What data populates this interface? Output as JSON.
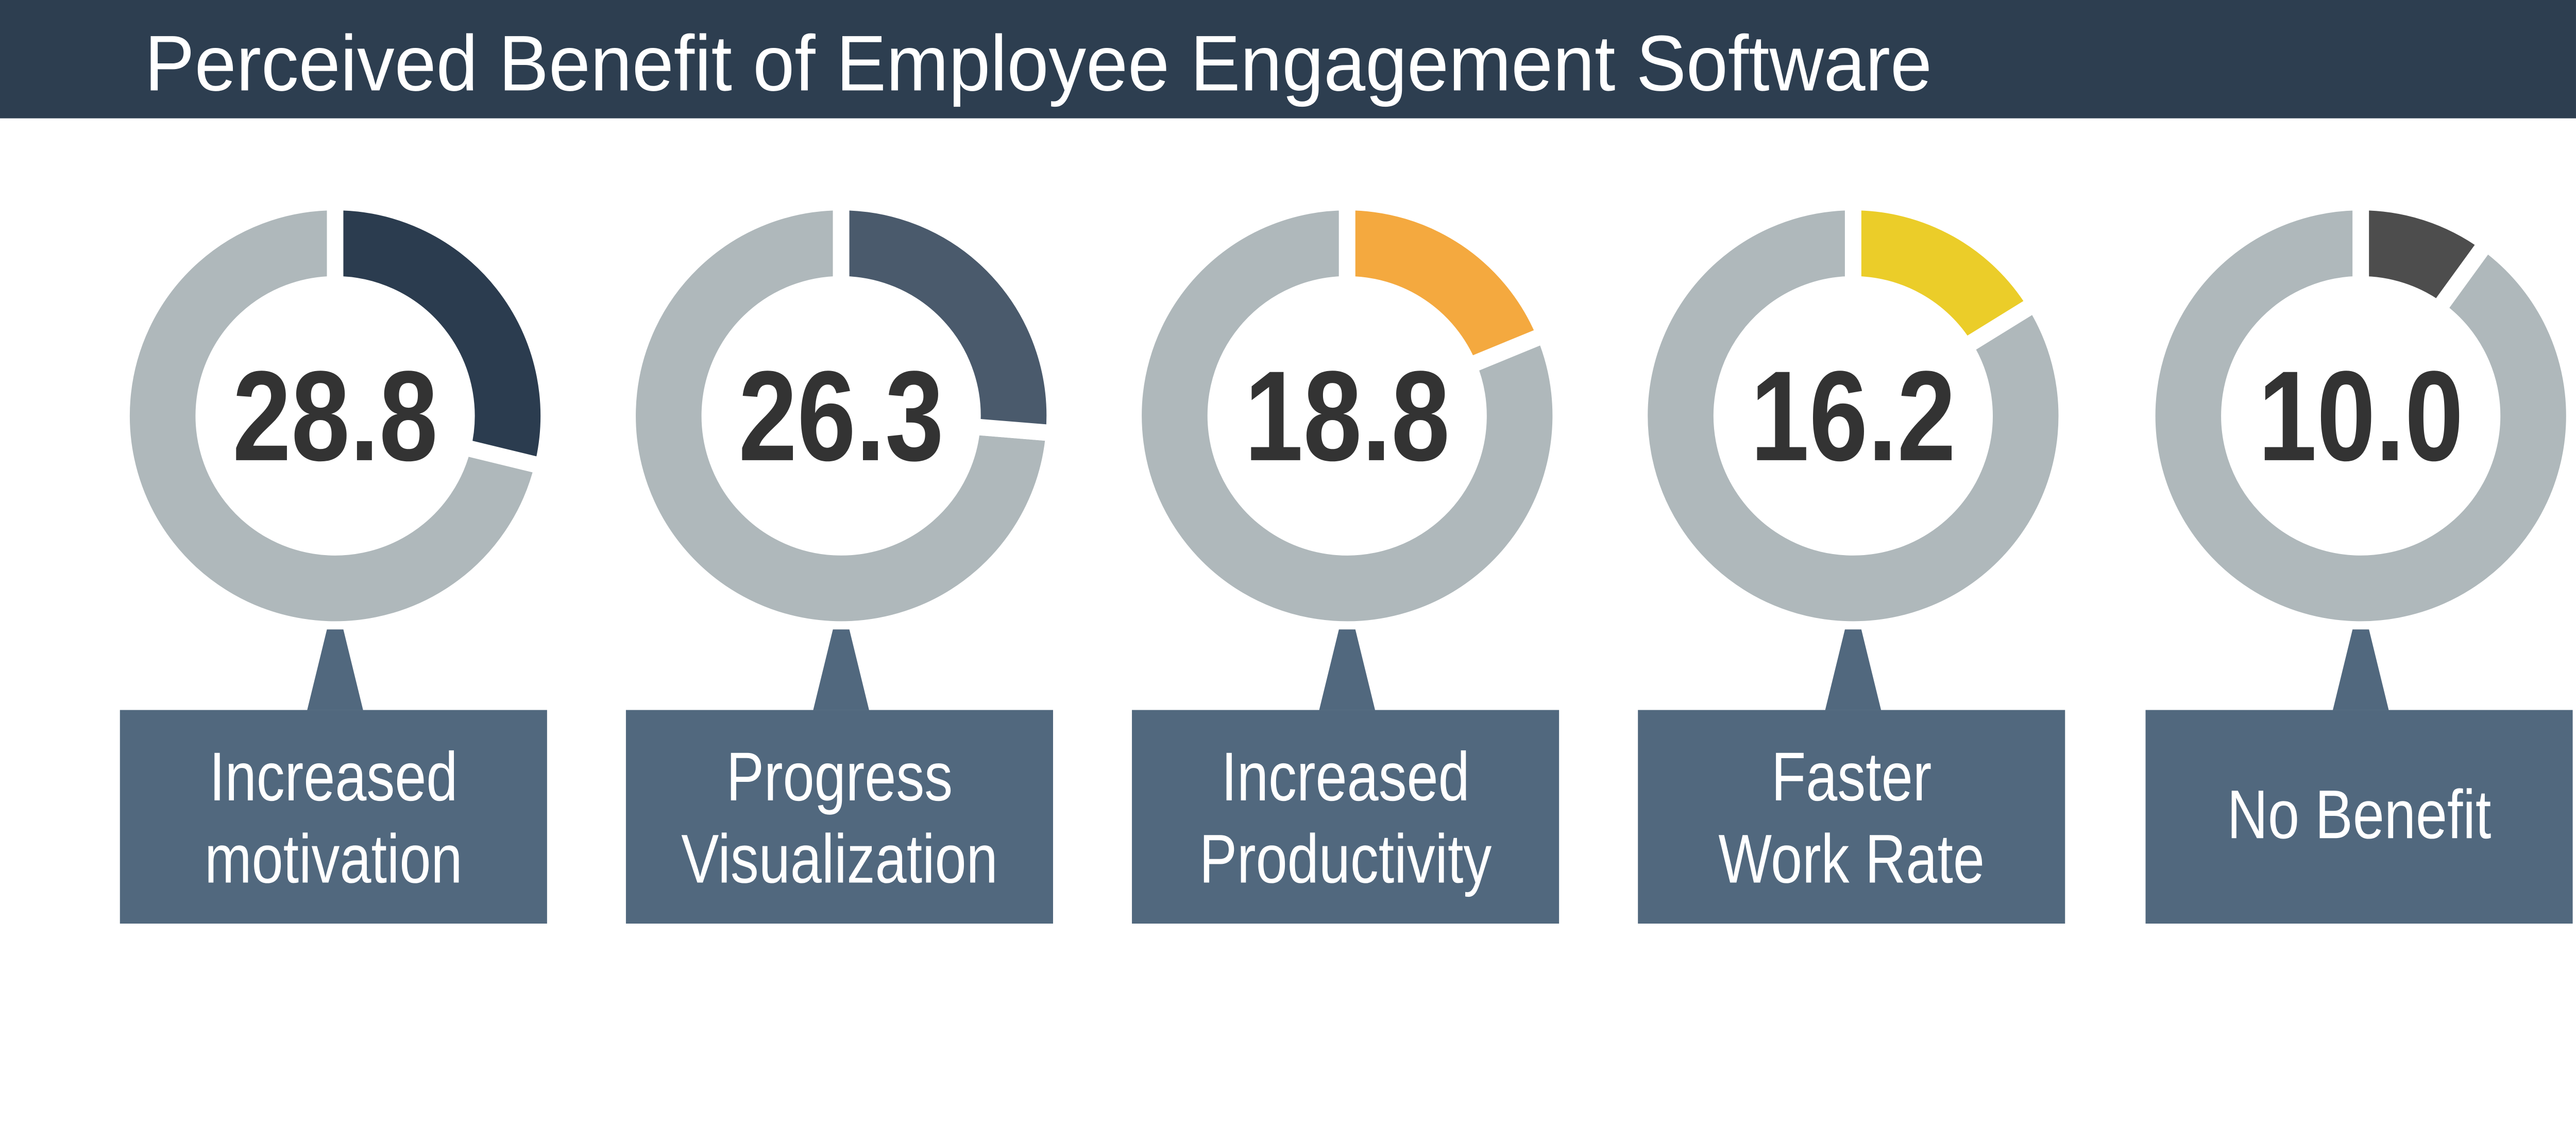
{
  "chart_data": {
    "type": "donut",
    "title": "Perceived Benefit of Employee Engagement Software",
    "unit": "%",
    "categories": [
      [
        "Increased",
        "motivation"
      ],
      [
        "Progress",
        "Visualization"
      ],
      [
        "Increased",
        "Productivity"
      ],
      [
        "Faster",
        "Work Rate"
      ],
      [
        "No Benefit"
      ]
    ],
    "values": [
      28.8,
      26.3,
      18.8,
      16.2,
      10.0
    ],
    "value_labels": [
      "28.8",
      "26.3",
      "18.8",
      "16.2",
      "10.0"
    ],
    "colors": [
      "#2b3c4f",
      "#4a5a6c",
      "#f4a93f",
      "#ebcd29",
      "#4d4d4d"
    ],
    "remainder_color": "#afb8bb",
    "header_color": "#2d3e50",
    "label_box_color": "#51687e"
  }
}
